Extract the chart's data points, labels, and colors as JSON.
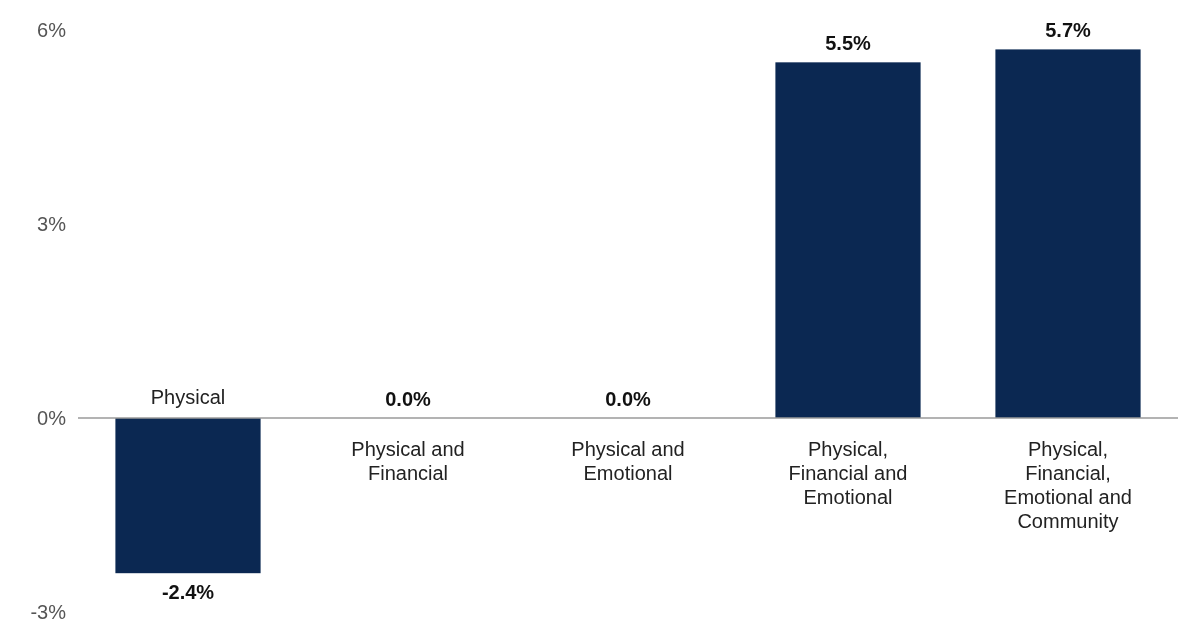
{
  "chart_data": {
    "type": "bar",
    "categories": [
      "Physical",
      "Physical and Financial",
      "Physical and Emotional",
      "Physical, Financial and Emotional",
      "Physical, Financial, Emotional and Community"
    ],
    "values": [
      -2.4,
      0.0,
      0.0,
      5.5,
      5.7
    ],
    "value_labels": [
      "-2.4%",
      "0.0%",
      "0.0%",
      "5.5%",
      "5.7%"
    ],
    "color": "#0b2852",
    "ylim": [
      -3,
      6
    ],
    "yticks": [
      {
        "value": -3,
        "label": "-3%"
      },
      {
        "value": 0,
        "label": "0%"
      },
      {
        "value": 3,
        "label": "3%"
      },
      {
        "value": 6,
        "label": "6%"
      }
    ],
    "grid": false
  }
}
